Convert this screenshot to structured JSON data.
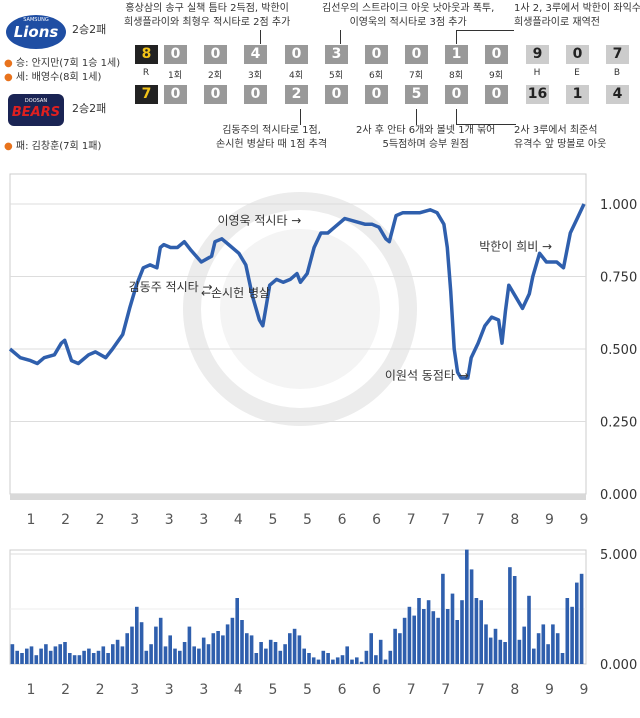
{
  "teams": {
    "away": {
      "logo_text": "Lions",
      "logo_sub": "SAMSUNG",
      "record": "2승2패",
      "win_pitcher": "승: 안지만(7회 1승 1세)",
      "save_pitcher": "세: 배영수(8회 1세)",
      "color": "#1f4ea3"
    },
    "home": {
      "logo_text": "BEARS",
      "logo_sub": "DOOSAN",
      "record": "2승2패",
      "loss_pitcher": "패: 김창훈(7회 1패)",
      "color": "#e02020"
    }
  },
  "scoreboard": {
    "away": {
      "runs": "8",
      "innings": [
        "0",
        "0",
        "4",
        "0",
        "3",
        "0",
        "0",
        "1",
        "0"
      ],
      "h": "9",
      "e": "0",
      "b": "7"
    },
    "home": {
      "runs": "7",
      "innings": [
        "0",
        "0",
        "0",
        "2",
        "0",
        "0",
        "5",
        "0",
        "0"
      ],
      "h": "16",
      "e": "1",
      "b": "4"
    },
    "labels": {
      "r": "R",
      "innings": [
        "1회",
        "2회",
        "3회",
        "4회",
        "5회",
        "6회",
        "7회",
        "8회",
        "9회"
      ],
      "h": "H",
      "e": "E",
      "b": "B"
    }
  },
  "annotations": {
    "top": [
      {
        "lines": [
          "홍상삼의 송구 실책 틈타 2득점, 박한이",
          "희생플라이와 최형우 적시타로 2점 추가"
        ]
      },
      {
        "lines": [
          "김선우의 스트라이크 아웃 낫아웃과 폭투,",
          "이영욱의 적시타로 3점 추가"
        ]
      },
      {
        "lines": [
          "1사 2, 3루에서 박한이 좌익수",
          "희생플라이로 재역전"
        ]
      }
    ],
    "bottom": [
      {
        "lines": [
          "김동주의 적시타로 1점,",
          "손시헌 병살타 때 1점 추격"
        ]
      },
      {
        "lines": [
          "2사 후 안타 6개와 볼넷 1개 묶어",
          "5득점하며 승부 원점"
        ]
      },
      {
        "lines": [
          "2사 3루에서 최준석",
          "유격수 앞 땅볼로 아웃"
        ]
      }
    ]
  },
  "chart_data": [
    {
      "type": "line",
      "x_tick_labels": [
        "1",
        "2",
        "2",
        "3",
        "3",
        "3",
        "4",
        "5",
        "5",
        "6",
        "6",
        "7",
        "7",
        "7",
        "8",
        "9",
        "9"
      ],
      "y_tick_labels": [
        "0.000",
        "0.250",
        "0.500",
        "0.750",
        "1.000"
      ],
      "ylim": [
        0,
        1
      ],
      "line_color": "#2f5fad",
      "annotations": [
        {
          "text": "이영욱 적시타 →",
          "x": 7.3,
          "y": 0.93
        },
        {
          "text": "김동주 적시타 →",
          "x": 4.7,
          "y": 0.7
        },
        {
          "text": "←손시헌 병살",
          "x": 6.6,
          "y": 0.68
        },
        {
          "text": "박한이 희비 →",
          "x": 14.8,
          "y": 0.84
        },
        {
          "text": "이원석 동점타 →",
          "x": 12.2,
          "y": 0.395
        }
      ],
      "points": [
        [
          0.0,
          0.5
        ],
        [
          0.3,
          0.47
        ],
        [
          0.6,
          0.46
        ],
        [
          0.8,
          0.45
        ],
        [
          1.0,
          0.47
        ],
        [
          1.3,
          0.48
        ],
        [
          1.5,
          0.52
        ],
        [
          1.6,
          0.53
        ],
        [
          1.8,
          0.46
        ],
        [
          2.0,
          0.45
        ],
        [
          2.3,
          0.48
        ],
        [
          2.5,
          0.49
        ],
        [
          2.8,
          0.47
        ],
        [
          3.0,
          0.5
        ],
        [
          3.3,
          0.55
        ],
        [
          3.5,
          0.64
        ],
        [
          3.7,
          0.72
        ],
        [
          3.9,
          0.78
        ],
        [
          4.1,
          0.79
        ],
        [
          4.3,
          0.78
        ],
        [
          4.4,
          0.85
        ],
        [
          4.5,
          0.86
        ],
        [
          4.7,
          0.85
        ],
        [
          4.9,
          0.85
        ],
        [
          5.1,
          0.87
        ],
        [
          5.3,
          0.84
        ],
        [
          5.6,
          0.8
        ],
        [
          5.9,
          0.82
        ],
        [
          6.0,
          0.87
        ],
        [
          6.2,
          0.88
        ],
        [
          6.4,
          0.86
        ],
        [
          6.7,
          0.83
        ],
        [
          6.9,
          0.79
        ],
        [
          7.1,
          0.68
        ],
        [
          7.2,
          0.64
        ],
        [
          7.3,
          0.6
        ],
        [
          7.4,
          0.58
        ],
        [
          7.5,
          0.65
        ],
        [
          7.6,
          0.72
        ],
        [
          7.8,
          0.74
        ],
        [
          8.0,
          0.73
        ],
        [
          8.2,
          0.74
        ],
        [
          8.4,
          0.76
        ],
        [
          8.5,
          0.73
        ],
        [
          8.7,
          0.76
        ],
        [
          8.9,
          0.85
        ],
        [
          9.1,
          0.9
        ],
        [
          9.3,
          0.9
        ],
        [
          9.5,
          0.92
        ],
        [
          9.8,
          0.95
        ],
        [
          10.1,
          0.94
        ],
        [
          10.4,
          0.93
        ],
        [
          10.6,
          0.93
        ],
        [
          10.8,
          0.92
        ],
        [
          11.0,
          0.88
        ],
        [
          11.1,
          0.87
        ],
        [
          11.3,
          0.96
        ],
        [
          11.5,
          0.97
        ],
        [
          11.8,
          0.97
        ],
        [
          12.0,
          0.97
        ],
        [
          12.3,
          0.98
        ],
        [
          12.5,
          0.97
        ],
        [
          12.7,
          0.93
        ],
        [
          12.8,
          0.85
        ],
        [
          12.9,
          0.7
        ],
        [
          13.0,
          0.5
        ],
        [
          13.1,
          0.42
        ],
        [
          13.2,
          0.4
        ],
        [
          13.4,
          0.4
        ],
        [
          13.5,
          0.47
        ],
        [
          13.7,
          0.52
        ],
        [
          13.9,
          0.58
        ],
        [
          14.1,
          0.61
        ],
        [
          14.3,
          0.6
        ],
        [
          14.4,
          0.52
        ],
        [
          14.5,
          0.63
        ],
        [
          14.6,
          0.72
        ],
        [
          14.8,
          0.68
        ],
        [
          15.0,
          0.64
        ],
        [
          15.2,
          0.69
        ],
        [
          15.3,
          0.75
        ],
        [
          15.5,
          0.83
        ],
        [
          15.7,
          0.8
        ],
        [
          16.0,
          0.8
        ],
        [
          16.2,
          0.78
        ],
        [
          16.4,
          0.9
        ],
        [
          16.6,
          0.95
        ],
        [
          16.8,
          1.0
        ]
      ]
    },
    {
      "type": "bar",
      "x_tick_labels": [
        "1",
        "2",
        "2",
        "3",
        "3",
        "3",
        "4",
        "5",
        "5",
        "6",
        "6",
        "7",
        "7",
        "7",
        "8",
        "9",
        "9"
      ],
      "y_tick_labels": [
        "0.000",
        "5.000"
      ],
      "ylim": [
        0,
        5
      ],
      "bar_color": "#2f5fad",
      "values": [
        0.9,
        0.6,
        0.5,
        0.7,
        0.8,
        0.4,
        0.7,
        0.9,
        0.6,
        0.8,
        0.9,
        1.0,
        0.5,
        0.4,
        0.4,
        0.6,
        0.7,
        0.5,
        0.6,
        0.8,
        0.5,
        0.9,
        1.1,
        0.8,
        1.4,
        1.7,
        2.6,
        1.9,
        0.6,
        0.9,
        1.7,
        2.1,
        0.8,
        1.3,
        0.7,
        0.6,
        1.0,
        1.7,
        0.8,
        0.7,
        1.2,
        0.9,
        1.4,
        1.5,
        1.3,
        1.8,
        2.1,
        3.0,
        2.0,
        1.4,
        1.3,
        0.5,
        1.0,
        0.7,
        1.1,
        1.0,
        0.6,
        0.9,
        1.4,
        1.6,
        1.3,
        0.7,
        0.5,
        0.3,
        0.2,
        0.6,
        0.5,
        0.2,
        0.3,
        0.4,
        0.8,
        0.2,
        0.3,
        0.1,
        0.6,
        1.4,
        0.4,
        1.1,
        0.2,
        0.6,
        1.6,
        1.4,
        2.1,
        2.6,
        2.2,
        3.0,
        2.5,
        2.9,
        2.4,
        2.1,
        4.1,
        2.5,
        3.2,
        2.0,
        2.9,
        5.2,
        4.3,
        3.0,
        2.9,
        1.8,
        1.2,
        1.6,
        1.1,
        1.0,
        4.4,
        4.0,
        1.1,
        1.7,
        3.1,
        0.7,
        1.4,
        1.8,
        0.9,
        1.8,
        1.4,
        0.5,
        3.0,
        2.6,
        3.7,
        4.1
      ]
    }
  ]
}
